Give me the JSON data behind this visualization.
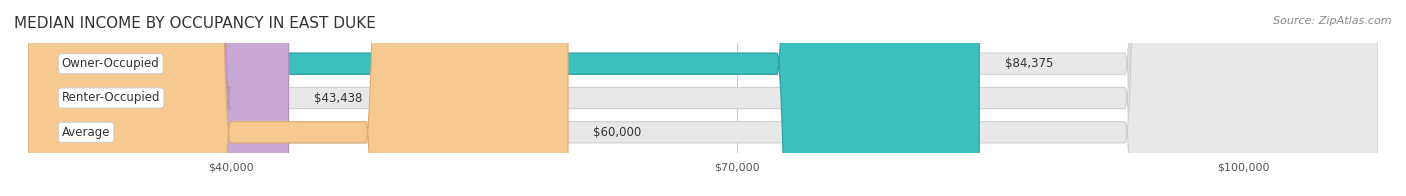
{
  "title": "MEDIAN INCOME BY OCCUPANCY IN EAST DUKE",
  "source": "Source: ZipAtlas.com",
  "categories": [
    "Owner-Occupied",
    "Renter-Occupied",
    "Average"
  ],
  "values": [
    84375,
    43438,
    60000
  ],
  "value_labels": [
    "$84,375",
    "$43,438",
    "$60,000"
  ],
  "bar_colors": [
    "#3bbfbf",
    "#c9a8d4",
    "#f5c990"
  ],
  "bar_edge_colors": [
    "#2aa0a0",
    "#b090bc",
    "#e0aa70"
  ],
  "xmin": 28000,
  "xmax": 108000,
  "xticks": [
    40000,
    70000,
    100000
  ],
  "xtick_labels": [
    "$40,000",
    "$70,000",
    "$100,000"
  ],
  "background_color": "#f0f0f0",
  "bar_bg_color": "#e8e8e8",
  "title_fontsize": 11,
  "label_fontsize": 8.5,
  "value_fontsize": 8.5,
  "source_fontsize": 8
}
